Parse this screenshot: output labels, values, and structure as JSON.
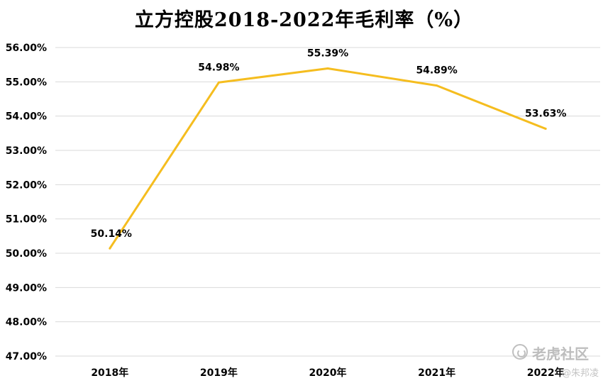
{
  "chart_data": {
    "type": "line",
    "title": "立方控股2018-2022年毛利率（%）",
    "categories": [
      "2018年",
      "2019年",
      "2020年",
      "2021年",
      "2022年"
    ],
    "series": [
      {
        "values": [
          50.14,
          54.98,
          55.39,
          54.89,
          53.63
        ],
        "labels": [
          "50.14%",
          "54.98%",
          "55.39%",
          "54.89%",
          "53.63%"
        ],
        "color": "#f5bd1f"
      }
    ],
    "ylim": [
      47,
      56
    ],
    "yticks": [
      "47.00%",
      "48.00%",
      "49.00%",
      "50.00%",
      "51.00%",
      "52.00%",
      "53.00%",
      "54.00%",
      "55.00%",
      "56.00%"
    ],
    "grid": true,
    "legend": "none"
  },
  "watermark": {
    "brand": "老虎社区",
    "author": "@朱邦凌",
    "icon": "tiger-logo-icon"
  }
}
